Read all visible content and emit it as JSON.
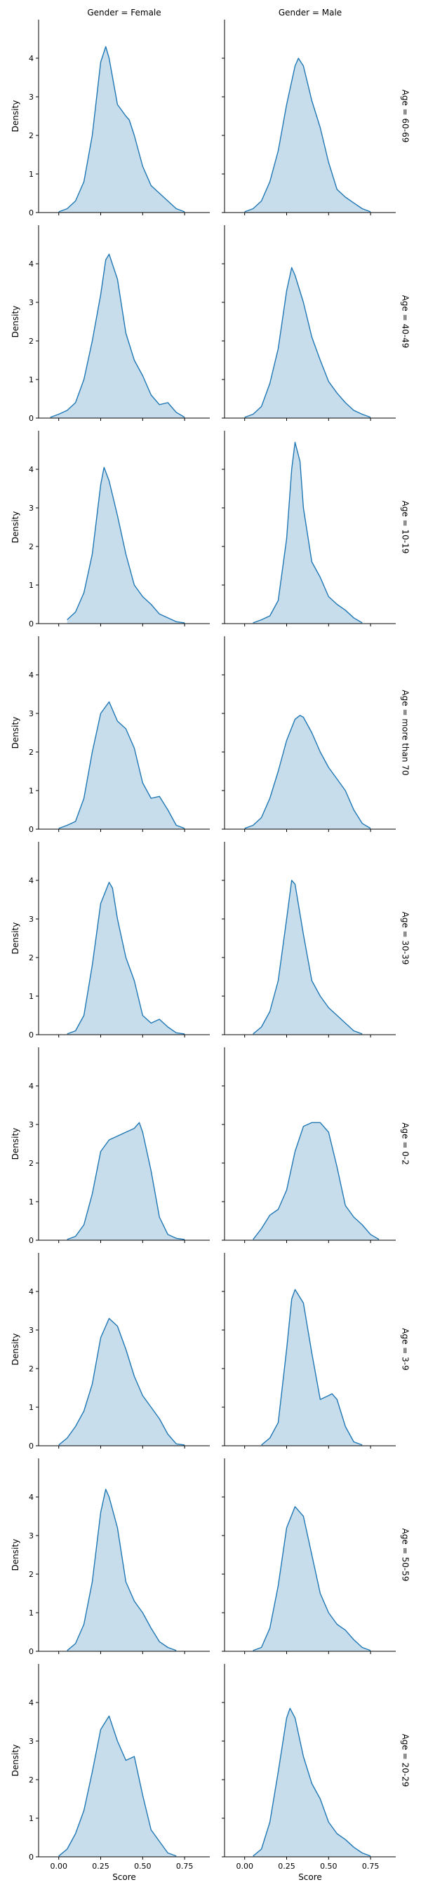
{
  "chart_data": {
    "type": "area",
    "kind": "kde-facet-grid",
    "col_facet": "Gender",
    "row_facet": "Age",
    "col_labels": [
      "Gender = Female",
      "Gender = Male"
    ],
    "xlabel": "Score",
    "ylabel": "Density",
    "xlim": [
      -0.12,
      0.9
    ],
    "ylim": [
      0,
      5
    ],
    "x_ticks": [
      0.0,
      0.25,
      0.5,
      0.75
    ],
    "x_tick_labels": [
      "0.00",
      "0.25",
      "0.50",
      "0.75"
    ],
    "y_ticks": [
      0,
      1,
      2,
      3,
      4
    ],
    "y_tick_labels": [
      "0",
      "1",
      "2",
      "3",
      "4"
    ],
    "grid": false,
    "legend": "none",
    "colors": {
      "line": "#1f77b4",
      "fill": "#1f77b4",
      "fill_opacity": 0.25,
      "axis": "#000000"
    },
    "rows": [
      {
        "label": "Age = 60-69",
        "panels": [
          {
            "gender": "Female",
            "x": [
              0.0,
              0.05,
              0.1,
              0.15,
              0.2,
              0.25,
              0.28,
              0.3,
              0.35,
              0.4,
              0.42,
              0.45,
              0.5,
              0.55,
              0.6,
              0.65,
              0.7,
              0.75
            ],
            "y": [
              0.02,
              0.1,
              0.3,
              0.8,
              2.0,
              3.9,
              4.3,
              4.0,
              2.8,
              2.5,
              2.4,
              2.0,
              1.2,
              0.7,
              0.5,
              0.3,
              0.1,
              0.02
            ]
          },
          {
            "gender": "Male",
            "x": [
              0.0,
              0.05,
              0.1,
              0.15,
              0.2,
              0.25,
              0.3,
              0.32,
              0.35,
              0.4,
              0.45,
              0.5,
              0.55,
              0.6,
              0.65,
              0.7,
              0.75
            ],
            "y": [
              0.02,
              0.1,
              0.3,
              0.8,
              1.6,
              2.8,
              3.8,
              4.0,
              3.8,
              2.9,
              2.2,
              1.3,
              0.6,
              0.4,
              0.25,
              0.1,
              0.02
            ]
          }
        ]
      },
      {
        "label": "Age = 40-49",
        "panels": [
          {
            "gender": "Female",
            "x": [
              -0.05,
              0.0,
              0.05,
              0.1,
              0.15,
              0.2,
              0.25,
              0.28,
              0.3,
              0.35,
              0.4,
              0.45,
              0.5,
              0.55,
              0.6,
              0.65,
              0.7,
              0.75
            ],
            "y": [
              0.02,
              0.1,
              0.2,
              0.4,
              1.0,
              2.0,
              3.2,
              4.1,
              4.25,
              3.6,
              2.2,
              1.5,
              1.1,
              0.6,
              0.35,
              0.4,
              0.15,
              0.02
            ]
          },
          {
            "gender": "Male",
            "x": [
              0.0,
              0.05,
              0.1,
              0.15,
              0.2,
              0.25,
              0.28,
              0.3,
              0.35,
              0.4,
              0.45,
              0.5,
              0.55,
              0.6,
              0.65,
              0.7,
              0.75
            ],
            "y": [
              0.02,
              0.1,
              0.3,
              0.9,
              1.8,
              3.3,
              3.9,
              3.7,
              3.0,
              2.1,
              1.5,
              0.95,
              0.65,
              0.4,
              0.2,
              0.1,
              0.02
            ]
          }
        ]
      },
      {
        "label": "Age = 10-19",
        "panels": [
          {
            "gender": "Female",
            "x": [
              0.05,
              0.1,
              0.15,
              0.2,
              0.25,
              0.27,
              0.3,
              0.35,
              0.4,
              0.45,
              0.5,
              0.55,
              0.6,
              0.65,
              0.7,
              0.75
            ],
            "y": [
              0.1,
              0.3,
              0.8,
              1.8,
              3.6,
              4.05,
              3.7,
              2.8,
              1.8,
              1.0,
              0.7,
              0.5,
              0.25,
              0.15,
              0.05,
              0.02
            ]
          },
          {
            "gender": "Male",
            "x": [
              0.05,
              0.1,
              0.15,
              0.2,
              0.25,
              0.28,
              0.3,
              0.33,
              0.35,
              0.4,
              0.45,
              0.5,
              0.55,
              0.6,
              0.65,
              0.7
            ],
            "y": [
              0.02,
              0.1,
              0.2,
              0.6,
              2.2,
              4.0,
              4.7,
              4.2,
              3.0,
              1.6,
              1.2,
              0.7,
              0.5,
              0.35,
              0.15,
              0.02
            ]
          }
        ]
      },
      {
        "label": "Age = more than 70",
        "panels": [
          {
            "gender": "Female",
            "x": [
              0.0,
              0.05,
              0.1,
              0.15,
              0.2,
              0.25,
              0.3,
              0.35,
              0.4,
              0.45,
              0.5,
              0.55,
              0.6,
              0.65,
              0.7,
              0.75
            ],
            "y": [
              0.02,
              0.1,
              0.2,
              0.8,
              2.0,
              3.0,
              3.3,
              2.8,
              2.6,
              2.1,
              1.2,
              0.8,
              0.85,
              0.5,
              0.1,
              0.02
            ]
          },
          {
            "gender": "Male",
            "x": [
              0.0,
              0.05,
              0.1,
              0.15,
              0.2,
              0.25,
              0.3,
              0.33,
              0.35,
              0.4,
              0.45,
              0.5,
              0.55,
              0.6,
              0.65,
              0.7,
              0.75
            ],
            "y": [
              0.02,
              0.1,
              0.3,
              0.8,
              1.5,
              2.3,
              2.85,
              2.95,
              2.9,
              2.5,
              2.0,
              1.6,
              1.3,
              1.0,
              0.5,
              0.15,
              0.02
            ]
          }
        ]
      },
      {
        "label": "Age = 30-39",
        "panels": [
          {
            "gender": "Female",
            "x": [
              0.05,
              0.1,
              0.15,
              0.2,
              0.25,
              0.3,
              0.32,
              0.35,
              0.4,
              0.45,
              0.5,
              0.55,
              0.6,
              0.65,
              0.7,
              0.75
            ],
            "y": [
              0.02,
              0.1,
              0.5,
              1.8,
              3.4,
              3.95,
              3.8,
              3.0,
              2.0,
              1.4,
              0.5,
              0.3,
              0.4,
              0.2,
              0.05,
              0.02
            ]
          },
          {
            "gender": "Male",
            "x": [
              0.05,
              0.1,
              0.15,
              0.2,
              0.25,
              0.28,
              0.3,
              0.35,
              0.4,
              0.45,
              0.5,
              0.55,
              0.6,
              0.65,
              0.7
            ],
            "y": [
              0.02,
              0.2,
              0.6,
              1.4,
              3.0,
              4.0,
              3.9,
              2.6,
              1.4,
              1.0,
              0.7,
              0.5,
              0.3,
              0.1,
              0.02
            ]
          }
        ]
      },
      {
        "label": "Age = 0-2",
        "panels": [
          {
            "gender": "Female",
            "x": [
              0.05,
              0.1,
              0.15,
              0.2,
              0.25,
              0.3,
              0.35,
              0.4,
              0.45,
              0.48,
              0.5,
              0.55,
              0.6,
              0.65,
              0.7,
              0.75
            ],
            "y": [
              0.02,
              0.1,
              0.4,
              1.2,
              2.3,
              2.6,
              2.7,
              2.8,
              2.9,
              3.05,
              2.8,
              1.8,
              0.6,
              0.15,
              0.05,
              0.02
            ]
          },
          {
            "gender": "Male",
            "x": [
              0.05,
              0.1,
              0.15,
              0.2,
              0.25,
              0.3,
              0.35,
              0.4,
              0.45,
              0.5,
              0.55,
              0.6,
              0.65,
              0.7,
              0.75,
              0.8
            ],
            "y": [
              0.02,
              0.3,
              0.65,
              0.8,
              1.3,
              2.3,
              2.95,
              3.05,
              3.05,
              2.8,
              1.9,
              0.9,
              0.6,
              0.4,
              0.15,
              0.02
            ]
          }
        ]
      },
      {
        "label": "Age = 3-9",
        "panels": [
          {
            "gender": "Female",
            "x": [
              0.0,
              0.05,
              0.1,
              0.15,
              0.2,
              0.25,
              0.3,
              0.35,
              0.4,
              0.45,
              0.5,
              0.55,
              0.6,
              0.65,
              0.7,
              0.75
            ],
            "y": [
              0.02,
              0.2,
              0.5,
              0.9,
              1.6,
              2.8,
              3.3,
              3.1,
              2.5,
              1.8,
              1.3,
              1.0,
              0.7,
              0.3,
              0.05,
              0.02
            ]
          },
          {
            "gender": "Male",
            "x": [
              0.1,
              0.15,
              0.2,
              0.25,
              0.28,
              0.3,
              0.35,
              0.4,
              0.45,
              0.5,
              0.52,
              0.55,
              0.6,
              0.65,
              0.7
            ],
            "y": [
              0.02,
              0.2,
              0.6,
              2.5,
              3.8,
              4.05,
              3.7,
              2.4,
              1.2,
              1.3,
              1.35,
              1.2,
              0.5,
              0.1,
              0.02
            ]
          }
        ]
      },
      {
        "label": "Age = 50-59",
        "panels": [
          {
            "gender": "Female",
            "x": [
              0.05,
              0.1,
              0.15,
              0.2,
              0.25,
              0.28,
              0.3,
              0.35,
              0.4,
              0.45,
              0.5,
              0.55,
              0.6,
              0.65,
              0.7
            ],
            "y": [
              0.02,
              0.2,
              0.7,
              1.8,
              3.6,
              4.2,
              4.0,
              3.2,
              1.8,
              1.3,
              1.0,
              0.6,
              0.25,
              0.1,
              0.02
            ]
          },
          {
            "gender": "Male",
            "x": [
              0.05,
              0.1,
              0.15,
              0.2,
              0.25,
              0.3,
              0.35,
              0.4,
              0.45,
              0.5,
              0.55,
              0.6,
              0.65,
              0.7,
              0.75
            ],
            "y": [
              0.02,
              0.1,
              0.6,
              1.7,
              3.2,
              3.75,
              3.5,
              2.5,
              1.5,
              1.0,
              0.7,
              0.55,
              0.3,
              0.1,
              0.02
            ]
          }
        ]
      },
      {
        "label": "Age = 20-29",
        "panels": [
          {
            "gender": "Female",
            "x": [
              0.0,
              0.05,
              0.1,
              0.15,
              0.2,
              0.25,
              0.3,
              0.35,
              0.4,
              0.45,
              0.5,
              0.55,
              0.6,
              0.65,
              0.7
            ],
            "y": [
              0.02,
              0.2,
              0.6,
              1.2,
              2.2,
              3.3,
              3.65,
              3.0,
              2.5,
              2.6,
              1.6,
              0.7,
              0.4,
              0.1,
              0.02
            ]
          },
          {
            "gender": "Male",
            "x": [
              0.05,
              0.1,
              0.15,
              0.2,
              0.25,
              0.27,
              0.3,
              0.35,
              0.4,
              0.45,
              0.5,
              0.55,
              0.6,
              0.65,
              0.7,
              0.75
            ],
            "y": [
              0.02,
              0.2,
              0.9,
              2.2,
              3.6,
              3.85,
              3.6,
              2.6,
              1.9,
              1.5,
              0.9,
              0.6,
              0.45,
              0.25,
              0.1,
              0.02
            ]
          }
        ]
      }
    ]
  }
}
